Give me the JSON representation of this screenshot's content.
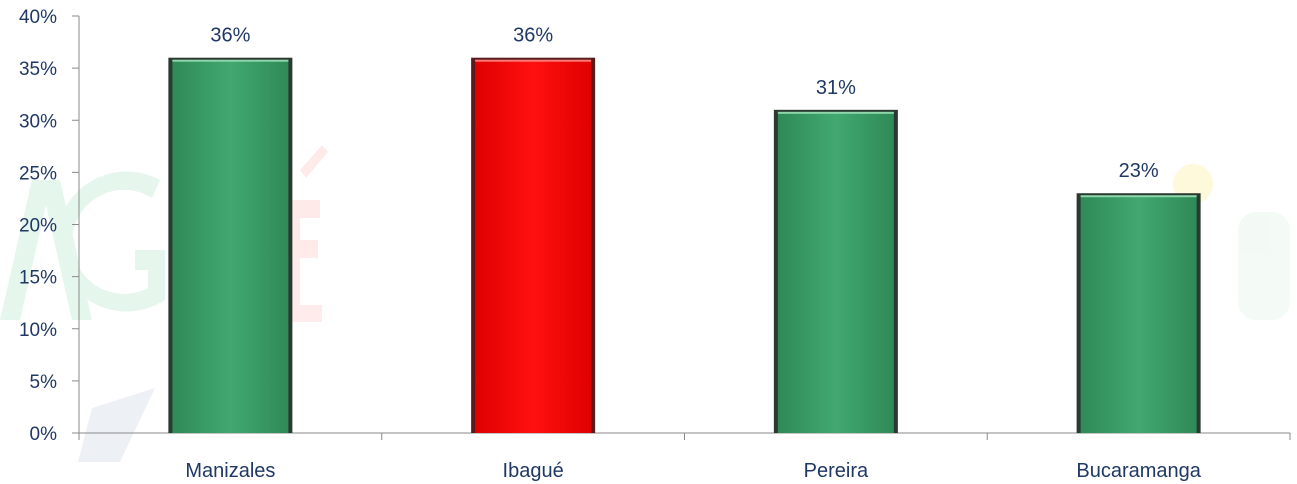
{
  "chart_data": {
    "type": "bar",
    "categories": [
      "Manizales",
      "Ibagué",
      "Pereira",
      "Bucaramanga"
    ],
    "values": [
      36,
      36,
      31,
      23
    ],
    "value_labels": [
      "36%",
      "36%",
      "31%",
      "23%"
    ],
    "ylim": [
      0,
      40
    ],
    "y_ticks": [
      0,
      5,
      10,
      15,
      20,
      25,
      30,
      35,
      40
    ],
    "y_tick_labels": [
      "0%",
      "5%",
      "10%",
      "15%",
      "20%",
      "25%",
      "30%",
      "35%",
      "40%"
    ],
    "grid": false,
    "legend": "none",
    "bar_colors": [
      "#3a9e68",
      "#ff0000",
      "#3a9e68",
      "#3a9e68"
    ],
    "highlight_category": "Ibagué",
    "axis_color": "#8a8a8a",
    "text_color": "#1f3864"
  }
}
